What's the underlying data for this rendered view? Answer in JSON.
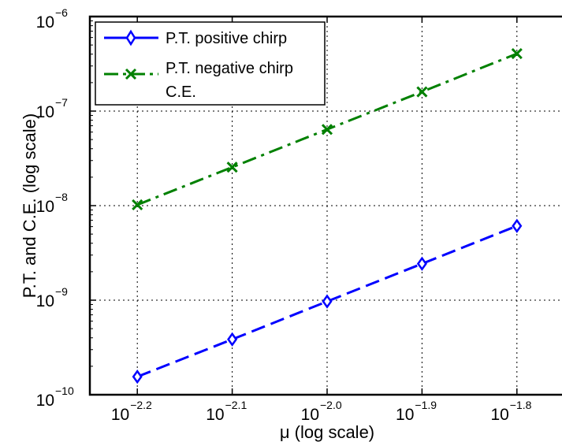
{
  "chart_data": {
    "type": "line",
    "xlabel": "μ (log scale)",
    "ylabel": "P.T. and C.E. (log scale)",
    "x_scale": "log",
    "y_scale": "log",
    "x_log_exponent_range": [
      -2.25,
      -1.75
    ],
    "y_log_exponent_range": [
      -10,
      -6
    ],
    "x_ticks": [
      {
        "base": "10",
        "exp": "−2.2",
        "value": -2.2
      },
      {
        "base": "10",
        "exp": "−2.1",
        "value": -2.1
      },
      {
        "base": "10",
        "exp": "−2.0",
        "value": -2.0
      },
      {
        "base": "10",
        "exp": "−1.9",
        "value": -1.9
      },
      {
        "base": "10",
        "exp": "−1.8",
        "value": -1.8
      }
    ],
    "y_ticks": [
      {
        "base": "10",
        "exp": "−10",
        "value": -10
      },
      {
        "base": "10",
        "exp": "−9",
        "value": -9
      },
      {
        "base": "10",
        "exp": "−8",
        "value": -8
      },
      {
        "base": "10",
        "exp": "−7",
        "value": -7
      },
      {
        "base": "10",
        "exp": "−6",
        "value": -6
      }
    ],
    "grid": true,
    "legend_position": "top-left",
    "x_log_exponents": [
      -2.2,
      -2.1,
      -2.0,
      -1.9,
      -1.8
    ],
    "series": [
      {
        "name": "P.T. positive chirp",
        "color": "#0000ff",
        "line_style": "dashed",
        "marker": "diamond",
        "y_values": [
          1.55e-10,
          3.85e-10,
          9.7e-10,
          2.43e-09,
          6.1e-09
        ]
      },
      {
        "name": "P.T. negative chirp",
        "color": "#008000",
        "line_style": "dash-dot",
        "marker": "x",
        "y_values": [
          1.02e-08,
          2.55e-08,
          6.4e-08,
          1.6e-07,
          4.05e-07
        ]
      },
      {
        "name": "C.E.",
        "color": "#008000",
        "line_style": "none",
        "marker": "none",
        "y_values": []
      }
    ]
  }
}
